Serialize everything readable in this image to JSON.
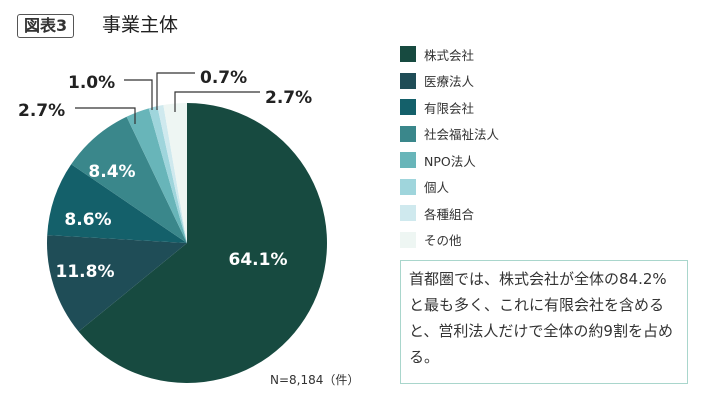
{
  "header": {
    "badge": "図表3",
    "title": "事業主体"
  },
  "chart_data": {
    "type": "pie",
    "title": "事業主体",
    "categories": [
      "株式会社",
      "医療法人",
      "有限会社",
      "社会福祉法人",
      "NPO法人",
      "個人",
      "各種組合",
      "その他"
    ],
    "values": [
      64.1,
      11.8,
      8.6,
      8.4,
      2.7,
      1.0,
      0.7,
      2.7
    ],
    "labels": [
      "64.1%",
      "11.8%",
      "8.6%",
      "8.4%",
      "2.7%",
      "1.0%",
      "0.7%",
      "2.7%"
    ],
    "colors": [
      "#174a40",
      "#1f4d57",
      "#14606a",
      "#3a878b",
      "#68b5b9",
      "#9fd5dc",
      "#cfe9ee",
      "#eef6f3"
    ],
    "legend_position": "right",
    "start": "top, clockwise"
  },
  "footnote": "N=8,184（件）",
  "note": "首都圏では、株式会社が全体の84.2%と最も多く、これに有限会社を含めると、営利法人だけで全体の約9割を占める。"
}
